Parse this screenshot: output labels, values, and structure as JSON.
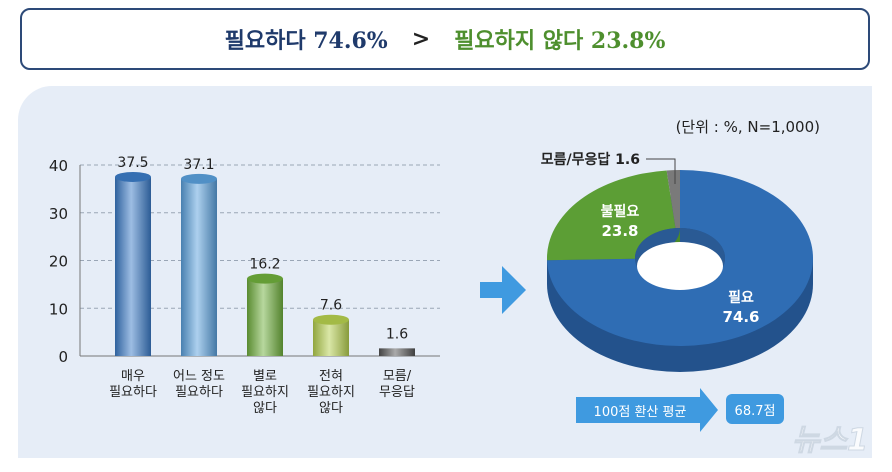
{
  "header": {
    "left_label": "필요하다 74.6%",
    "separator": ">",
    "right_label": "필요하지 않다 23.8%",
    "left_color": "#1f3a6b",
    "right_color": "#4e8f2e"
  },
  "unit_note": "(단위 : %, N=1,000)",
  "chart_data": [
    {
      "type": "bar",
      "categories": [
        "매우\n필요하다",
        "어느 정도\n필요하다",
        "별로\n필요하지\n않다",
        "전혀\n필요하지\n않다",
        "모름/\n무응답"
      ],
      "values": [
        37.5,
        37.1,
        16.2,
        7.6,
        1.6
      ],
      "value_labels": [
        "37.5",
        "37.1",
        "16.2",
        "7.6",
        "1.6"
      ],
      "colors": [
        "#3b7bc6",
        "#5aa0dc",
        "#6fae3c",
        "#b5cf4e",
        "#555555"
      ],
      "ylim": [
        0,
        40
      ],
      "yticks": [
        "0",
        "10",
        "20",
        "30",
        "40"
      ],
      "grid": true
    },
    {
      "type": "pie",
      "donut": true,
      "slices": [
        {
          "label": "필요",
          "value": 74.6,
          "color": "#2f6db4"
        },
        {
          "label": "불필요",
          "value": 23.8,
          "color": "#5c9e35"
        },
        {
          "label": "모름/무응답",
          "value": 1.6,
          "color": "#7a7a7a"
        }
      ]
    }
  ],
  "avg": {
    "label": "100점 환산 평균",
    "value": "68.7점"
  },
  "watermark": "뉴스1"
}
